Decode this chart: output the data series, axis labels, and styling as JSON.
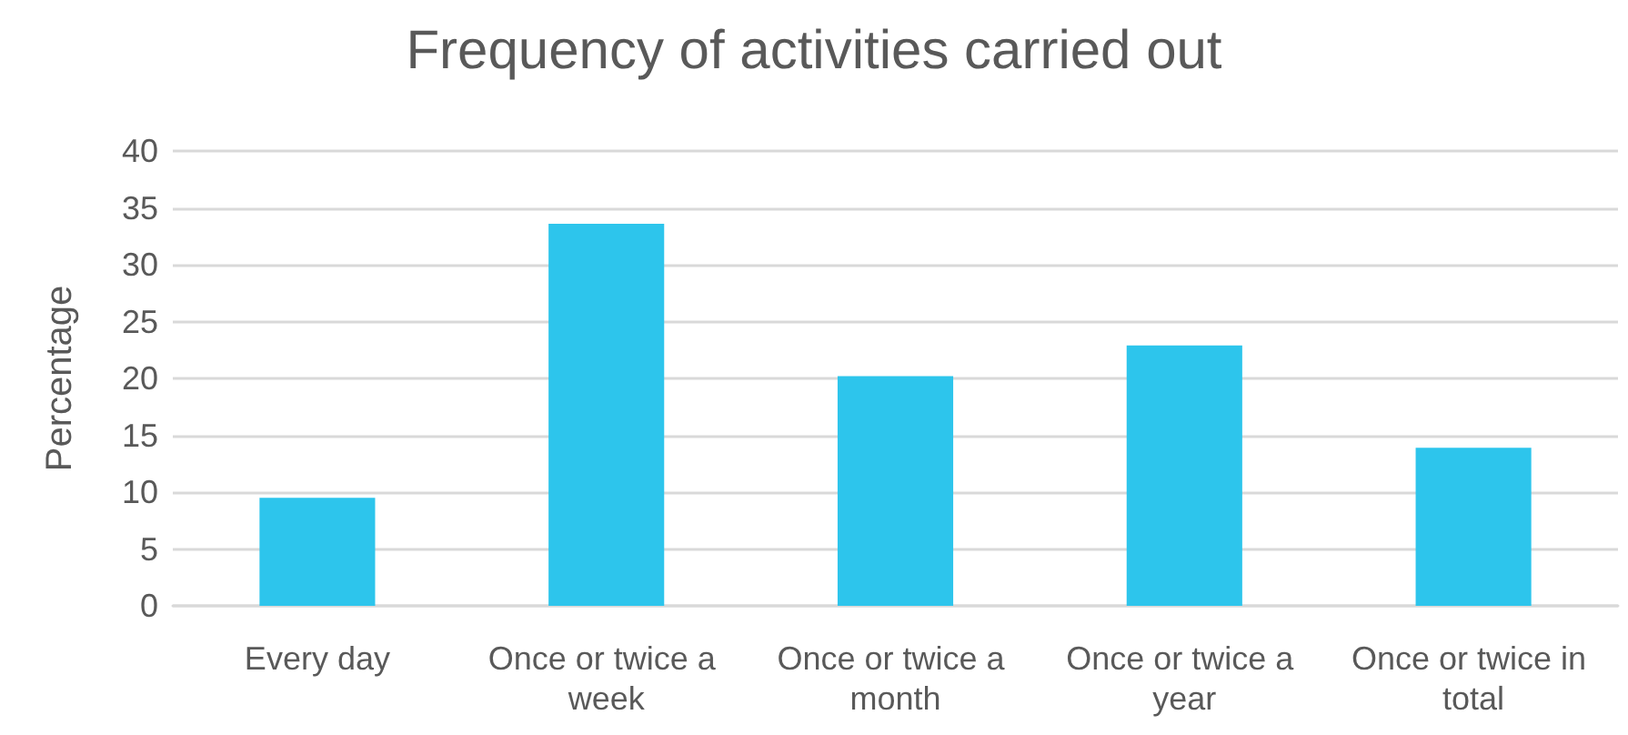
{
  "chart_data": {
    "type": "bar",
    "title": "Frequency of activities carried out",
    "ylabel": "Percentage",
    "categories": [
      "Every day",
      "Once or twice a week",
      "Once or twice a month",
      "Once or twice a year",
      "Once or twice in total"
    ],
    "values": [
      9.5,
      33.6,
      20.2,
      22.9,
      13.9
    ],
    "color": "#2dc5ec",
    "ylim": [
      0,
      40
    ],
    "yticks": [
      0,
      5,
      10,
      15,
      20,
      25,
      30,
      35,
      40
    ],
    "grid": "y"
  }
}
